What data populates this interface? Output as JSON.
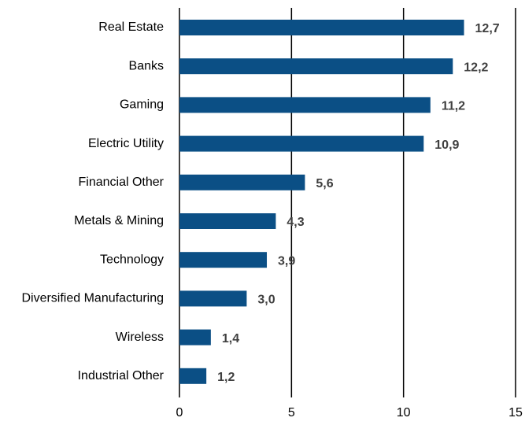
{
  "chart_data": {
    "type": "bar",
    "orientation": "horizontal",
    "categories": [
      "Real Estate",
      "Banks",
      "Gaming",
      "Electric Utility",
      "Financial Other",
      "Metals & Mining",
      "Technology",
      "Diversified Manufacturing",
      "Wireless",
      "Industrial Other"
    ],
    "values": [
      12.7,
      12.2,
      11.2,
      10.9,
      5.6,
      4.3,
      3.9,
      3.0,
      1.4,
      1.2
    ],
    "value_labels": [
      "12,7",
      "12,2",
      "11,2",
      "10,9",
      "5,6",
      "4,3",
      "3,9",
      "3,0",
      "1,4",
      "1,2"
    ],
    "color": "#0b4f85",
    "xlim": [
      0,
      15
    ],
    "xticks": [
      0,
      5,
      10,
      15
    ],
    "grid": true
  }
}
